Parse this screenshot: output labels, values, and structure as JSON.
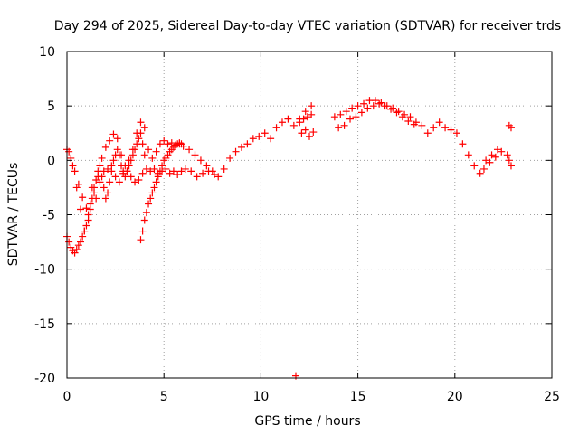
{
  "chart_data": {
    "type": "scatter",
    "title": "Day 294 of 2025, Sidereal Day-to-day VTEC variation (SDTVAR) for receiver trds",
    "xlabel": "GPS time / hours",
    "ylabel": "SDTVAR / TECUs",
    "xlim": [
      0,
      25
    ],
    "ylim": [
      -20,
      10
    ],
    "x_ticks": [
      0,
      5,
      10,
      15,
      20,
      25
    ],
    "y_ticks": [
      -20,
      -15,
      -10,
      -5,
      0,
      5,
      10
    ],
    "grid": true,
    "marker": "+",
    "color": "#ff0000",
    "series": [
      {
        "name": "trds",
        "x": [
          0.0,
          0.2,
          0.4,
          0.6,
          0.8,
          1.0,
          1.2,
          1.4,
          1.6,
          1.8,
          2.0,
          2.2,
          2.4,
          2.6,
          2.8,
          3.0,
          3.2,
          3.4,
          3.6,
          3.8,
          4.0,
          4.2,
          4.4,
          4.6,
          4.8,
          5.0,
          5.2,
          5.4,
          5.6,
          5.8,
          6.0,
          6.3,
          6.6,
          6.9,
          7.2,
          7.5,
          7.8,
          8.1,
          8.4,
          8.7,
          9.0,
          9.3,
          9.6,
          9.9,
          10.2,
          10.5,
          10.8,
          11.1,
          11.4,
          11.7,
          12.0,
          12.3,
          12.6,
          13.8,
          14.1,
          14.4,
          14.7,
          15.0,
          15.3,
          15.6,
          15.9,
          16.2,
          16.5,
          16.8,
          17.1,
          17.4,
          17.7,
          18.0,
          18.3,
          18.6,
          18.9,
          19.2,
          19.5,
          19.8,
          20.1,
          20.4,
          20.7,
          21.0,
          21.3,
          21.6,
          21.9,
          22.2,
          22.8,
          22.9,
          0.1,
          0.3,
          0.5,
          0.7,
          0.9,
          1.1,
          1.3,
          1.5,
          1.7,
          1.9,
          2.1,
          2.3,
          2.5,
          2.7,
          2.9,
          3.1,
          3.3,
          3.5,
          3.7,
          3.9,
          4.1,
          4.3,
          4.5,
          4.7,
          4.9,
          5.1,
          5.3,
          5.5,
          5.7,
          5.9,
          6.1,
          6.4,
          6.7,
          7.0,
          7.3,
          7.6,
          3.8,
          3.9,
          4.0,
          4.1,
          4.2,
          4.3,
          4.4,
          4.5,
          4.6,
          4.7,
          4.8,
          4.9,
          5.0,
          5.1,
          5.2,
          5.3,
          5.4,
          5.5,
          5.6,
          5.7,
          5.8,
          5.9,
          0.0,
          0.1,
          0.2,
          0.3,
          0.4,
          0.5,
          0.6,
          0.7,
          0.8,
          0.9,
          1.0,
          1.1,
          1.2,
          1.3,
          1.4,
          1.5,
          1.6,
          1.7,
          1.8,
          1.9,
          2.0,
          2.1,
          2.2,
          2.3,
          2.4,
          2.5,
          2.6,
          2.7,
          2.8,
          2.9,
          3.0,
          3.1,
          3.2,
          3.3,
          3.4,
          3.5,
          3.6,
          3.7,
          3.8,
          3.9,
          4.0,
          12.0,
          12.2,
          12.4,
          12.6,
          12.1,
          12.3,
          12.5,
          12.7,
          14.0,
          14.3,
          14.6,
          14.9,
          15.2,
          15.5,
          15.8,
          16.1,
          16.4,
          16.7,
          17.0,
          17.3,
          17.6,
          17.9,
          22.7,
          22.8,
          22.9,
          21.5,
          21.8,
          22.1,
          22.4,
          11.8
        ],
        "y": [
          1.0,
          0.2,
          -1.0,
          -2.2,
          -3.4,
          -4.4,
          -4.0,
          -3.0,
          -1.5,
          0.2,
          1.2,
          1.8,
          2.4,
          2.0,
          0.5,
          -0.5,
          0.0,
          1.0,
          2.5,
          3.5,
          3.0,
          1.0,
          0.2,
          0.8,
          1.5,
          1.8,
          1.5,
          1.6,
          1.4,
          1.5,
          1.3,
          1.0,
          0.5,
          0.0,
          -0.5,
          -1.0,
          -1.5,
          -0.8,
          0.2,
          0.8,
          1.2,
          1.5,
          2.0,
          2.2,
          2.5,
          2.0,
          3.0,
          3.5,
          3.8,
          3.2,
          3.8,
          4.5,
          5.0,
          4.0,
          4.2,
          4.5,
          4.8,
          5.0,
          5.2,
          5.5,
          5.5,
          5.3,
          5.0,
          4.8,
          4.5,
          4.2,
          4.0,
          3.5,
          3.2,
          2.5,
          3.0,
          3.5,
          3.0,
          2.8,
          2.5,
          1.5,
          0.5,
          -0.5,
          -1.2,
          0.0,
          0.5,
          1.0,
          3.2,
          3.0,
          0.8,
          -0.5,
          -2.5,
          -4.5,
          -6.5,
          -5.0,
          -2.5,
          -3.5,
          -2.0,
          -1.0,
          -0.8,
          -0.5,
          -1.5,
          -2.0,
          -1.2,
          -1.0,
          -1.5,
          -2.0,
          -1.8,
          -1.2,
          -0.8,
          -1.0,
          -0.8,
          -1.2,
          -1.0,
          -0.8,
          -1.2,
          -1.0,
          -1.3,
          -1.0,
          -0.8,
          -1.0,
          -1.5,
          -1.2,
          -1.0,
          -1.3,
          -7.3,
          -6.5,
          -5.5,
          -4.8,
          -4.0,
          -3.5,
          -3.0,
          -2.5,
          -2.0,
          -1.5,
          -1.0,
          -0.5,
          0.0,
          0.2,
          0.5,
          0.8,
          1.0,
          1.2,
          1.4,
          1.5,
          1.6,
          1.5,
          -7.0,
          -7.5,
          -8.0,
          -8.3,
          -8.5,
          -8.2,
          -7.8,
          -7.5,
          -7.0,
          -6.5,
          -6.0,
          -5.5,
          -4.5,
          -3.5,
          -2.5,
          -1.8,
          -1.0,
          -0.5,
          -1.5,
          -2.5,
          -3.5,
          -3.0,
          -2.0,
          -1.0,
          0.0,
          0.5,
          1.0,
          0.5,
          -0.5,
          -1.0,
          -1.5,
          -1.0,
          -0.5,
          0.0,
          0.5,
          1.0,
          1.5,
          2.0,
          2.5,
          1.5,
          0.5,
          3.5,
          3.8,
          4.0,
          4.2,
          2.5,
          2.8,
          2.2,
          2.6,
          3.0,
          3.2,
          3.8,
          4.0,
          4.4,
          4.8,
          5.0,
          5.2,
          5.0,
          4.7,
          4.4,
          4.0,
          3.6,
          3.3,
          0.5,
          0.0,
          -0.5,
          -0.8,
          -0.2,
          0.3,
          0.8,
          -19.8
        ]
      }
    ]
  }
}
